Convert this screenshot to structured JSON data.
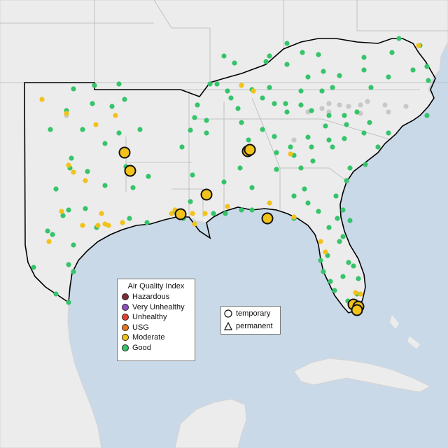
{
  "legend": {
    "title": "Air Quality Index",
    "categories": [
      {
        "label": "Hazardous",
        "color": "#7e2b35"
      },
      {
        "label": "Very Unhealthy",
        "color": "#8f4fc1"
      },
      {
        "label": "Unhealthy",
        "color": "#e8402f"
      },
      {
        "label": "USG",
        "color": "#e8761c"
      },
      {
        "label": "Moderate",
        "color": "#f2c21a"
      },
      {
        "label": "Good",
        "color": "#35c46a"
      }
    ]
  },
  "monitor_types": [
    {
      "label": "temporary",
      "shape": "circle"
    },
    {
      "label": "permanent",
      "shape": "triangle"
    }
  ],
  "colors": {
    "water": "#c9d9e8",
    "land": "#ececec",
    "border": "#000000",
    "state_lines": "#b8b8b8",
    "no_data": "#c8c8c8"
  }
}
